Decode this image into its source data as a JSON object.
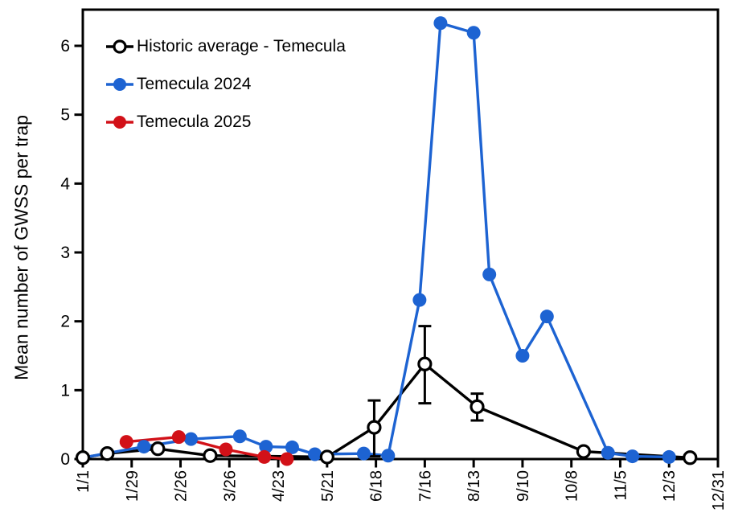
{
  "figure": {
    "background": "#ffffff",
    "y_axis": {
      "title": "Mean number of GWSS per trap",
      "ticks": [
        0,
        1,
        2,
        3,
        4,
        5,
        6
      ]
    },
    "x_axis": {
      "tick_labels": [
        "1/1",
        "1/29",
        "2/26",
        "3/26",
        "4/23",
        "5/21",
        "6/18",
        "7/16",
        "8/13",
        "9/10",
        "10/8",
        "11/5",
        "12/3",
        "12/31"
      ],
      "tick_days": [
        1,
        29,
        57,
        85,
        113,
        141,
        169,
        197,
        225,
        253,
        281,
        309,
        337,
        365
      ]
    },
    "legend": [
      {
        "label": "Historic average - Temecula",
        "color": "#000000",
        "marker": "open-circle"
      },
      {
        "label": "Temecula 2024",
        "color": "#1d63d2",
        "marker": "filled-circle"
      },
      {
        "label": "Temecula 2025",
        "color": "#d21118",
        "marker": "filled-circle"
      }
    ]
  },
  "chart_data": {
    "type": "line",
    "title": "",
    "xlabel": "",
    "ylabel": "Mean number of GWSS per trap",
    "x_unit": "date (month/day)",
    "xlim_days": [
      1,
      365
    ],
    "ylim": [
      0,
      6.5
    ],
    "grid": false,
    "legend_position": "upper-left-inside",
    "series": [
      {
        "name": "Historic average - Temecula",
        "color": "#000000",
        "marker": "open-circle",
        "points": [
          {
            "date": "1/1",
            "day": 1,
            "value": 0.02
          },
          {
            "date": "1/15",
            "day": 15,
            "value": 0.08
          },
          {
            "date": "2/13",
            "day": 44,
            "value": 0.15
          },
          {
            "date": "3/15",
            "day": 74,
            "value": 0.05
          },
          {
            "date": "5/21",
            "day": 141,
            "value": 0.03
          },
          {
            "date": "6/17",
            "day": 168,
            "value": 0.46,
            "err_low": 0.04,
            "err_high": 0.85
          },
          {
            "date": "7/16",
            "day": 197,
            "value": 1.38,
            "err_low": 0.81,
            "err_high": 1.93
          },
          {
            "date": "8/15",
            "day": 227,
            "value": 0.76,
            "err_low": 0.56,
            "err_high": 0.95
          },
          {
            "date": "10/15",
            "day": 288,
            "value": 0.11
          },
          {
            "date": "12/15",
            "day": 349,
            "value": 0.02
          }
        ]
      },
      {
        "name": "Temecula 2024",
        "color": "#1d63d2",
        "marker": "filled-circle",
        "points": [
          {
            "date": "1/1",
            "day": 1,
            "value": 0.02
          },
          {
            "date": "2/5",
            "day": 36,
            "value": 0.18
          },
          {
            "date": "3/4",
            "day": 63,
            "value": 0.29
          },
          {
            "date": "4/1",
            "day": 91,
            "value": 0.33
          },
          {
            "date": "4/16",
            "day": 106,
            "value": 0.18
          },
          {
            "date": "5/1",
            "day": 121,
            "value": 0.17
          },
          {
            "date": "5/14",
            "day": 134,
            "value": 0.07
          },
          {
            "date": "6/11",
            "day": 162,
            "value": 0.08
          },
          {
            "date": "6/25",
            "day": 176,
            "value": 0.05
          },
          {
            "date": "7/13",
            "day": 194,
            "value": 2.31
          },
          {
            "date": "7/25",
            "day": 206,
            "value": 6.33
          },
          {
            "date": "8/13",
            "day": 225,
            "value": 6.19
          },
          {
            "date": "8/22",
            "day": 234,
            "value": 2.68
          },
          {
            "date": "9/10",
            "day": 253,
            "value": 1.5
          },
          {
            "date": "9/24",
            "day": 267,
            "value": 2.07
          },
          {
            "date": "10/29",
            "day": 302,
            "value": 0.09
          },
          {
            "date": "11/12",
            "day": 316,
            "value": 0.04
          },
          {
            "date": "12/3",
            "day": 337,
            "value": 0.03
          }
        ]
      },
      {
        "name": "Temecula 2025",
        "color": "#d21118",
        "marker": "filled-circle",
        "points": [
          {
            "date": "1/26",
            "day": 26,
            "value": 0.25
          },
          {
            "date": "2/25",
            "day": 56,
            "value": 0.32
          },
          {
            "date": "3/24",
            "day": 83,
            "value": 0.14
          },
          {
            "date": "4/15",
            "day": 105,
            "value": 0.03
          },
          {
            "date": "4/28",
            "day": 118,
            "value": 0.0
          }
        ]
      }
    ]
  }
}
